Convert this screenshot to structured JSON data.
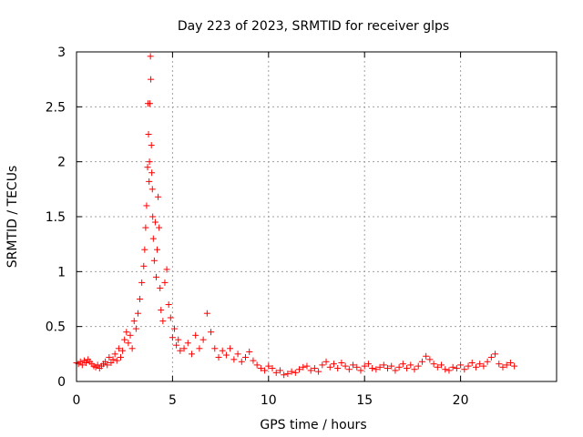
{
  "chart_data": {
    "type": "scatter",
    "title": "Day 223 of 2023, SRMTID for receiver glps",
    "xlabel": "GPS time / hours",
    "ylabel": "SRMTID / TECUs",
    "xlim": [
      0,
      25
    ],
    "ylim": [
      0,
      3
    ],
    "xticks": [
      0,
      5,
      10,
      15,
      20
    ],
    "xtick_labels": [
      "0",
      "5",
      "10",
      "15",
      "20"
    ],
    "yticks": [
      0,
      0.5,
      1,
      1.5,
      2,
      2.5,
      3
    ],
    "ytick_labels": [
      "0",
      "0.5",
      "1",
      "1.5",
      "2",
      "2.5",
      "3"
    ],
    "grid": true,
    "marker": "+",
    "marker_color": "#ff0000",
    "series": [
      {
        "name": "SRMTID",
        "points": [
          [
            0.0,
            0.17
          ],
          [
            0.1,
            0.16
          ],
          [
            0.2,
            0.18
          ],
          [
            0.3,
            0.15
          ],
          [
            0.4,
            0.19
          ],
          [
            0.5,
            0.17
          ],
          [
            0.6,
            0.2
          ],
          [
            0.7,
            0.18
          ],
          [
            0.8,
            0.16
          ],
          [
            0.9,
            0.14
          ],
          [
            1.0,
            0.13
          ],
          [
            1.1,
            0.15
          ],
          [
            1.2,
            0.12
          ],
          [
            1.3,
            0.14
          ],
          [
            1.4,
            0.16
          ],
          [
            1.5,
            0.18
          ],
          [
            1.6,
            0.15
          ],
          [
            1.7,
            0.22
          ],
          [
            1.8,
            0.17
          ],
          [
            1.9,
            0.2
          ],
          [
            2.0,
            0.25
          ],
          [
            2.1,
            0.19
          ],
          [
            2.2,
            0.3
          ],
          [
            2.3,
            0.22
          ],
          [
            2.4,
            0.28
          ],
          [
            2.5,
            0.38
          ],
          [
            2.6,
            0.45
          ],
          [
            2.7,
            0.35
          ],
          [
            2.8,
            0.42
          ],
          [
            2.9,
            0.3
          ],
          [
            3.0,
            0.55
          ],
          [
            3.1,
            0.48
          ],
          [
            3.2,
            0.62
          ],
          [
            3.3,
            0.75
          ],
          [
            3.4,
            0.9
          ],
          [
            3.5,
            1.05
          ],
          [
            3.55,
            1.2
          ],
          [
            3.6,
            1.4
          ],
          [
            3.65,
            1.6
          ],
          [
            3.7,
            1.95
          ],
          [
            3.72,
            2.53
          ],
          [
            3.75,
            2.25
          ],
          [
            3.78,
            1.82
          ],
          [
            3.8,
            2.0
          ],
          [
            3.82,
            2.53
          ],
          [
            3.85,
            2.96
          ],
          [
            3.87,
            2.75
          ],
          [
            3.9,
            2.15
          ],
          [
            3.92,
            1.9
          ],
          [
            3.95,
            1.75
          ],
          [
            3.97,
            1.5
          ],
          [
            4.0,
            1.3
          ],
          [
            4.05,
            1.1
          ],
          [
            4.1,
            1.45
          ],
          [
            4.15,
            0.95
          ],
          [
            4.2,
            1.2
          ],
          [
            4.25,
            1.68
          ],
          [
            4.3,
            1.4
          ],
          [
            4.35,
            0.85
          ],
          [
            4.4,
            0.65
          ],
          [
            4.5,
            0.55
          ],
          [
            4.6,
            0.9
          ],
          [
            4.7,
            1.02
          ],
          [
            4.8,
            0.7
          ],
          [
            4.9,
            0.58
          ],
          [
            5.0,
            0.4
          ],
          [
            5.1,
            0.48
          ],
          [
            5.2,
            0.33
          ],
          [
            5.3,
            0.38
          ],
          [
            5.4,
            0.28
          ],
          [
            5.6,
            0.3
          ],
          [
            5.8,
            0.35
          ],
          [
            6.0,
            0.25
          ],
          [
            6.2,
            0.42
          ],
          [
            6.4,
            0.3
          ],
          [
            6.6,
            0.38
          ],
          [
            6.8,
            0.62
          ],
          [
            7.0,
            0.45
          ],
          [
            7.2,
            0.3
          ],
          [
            7.4,
            0.22
          ],
          [
            7.6,
            0.28
          ],
          [
            7.8,
            0.24
          ],
          [
            8.0,
            0.3
          ],
          [
            8.2,
            0.2
          ],
          [
            8.4,
            0.25
          ],
          [
            8.6,
            0.18
          ],
          [
            8.8,
            0.22
          ],
          [
            9.0,
            0.27
          ],
          [
            9.2,
            0.19
          ],
          [
            9.4,
            0.15
          ],
          [
            9.6,
            0.12
          ],
          [
            9.8,
            0.1
          ],
          [
            10.0,
            0.14
          ],
          [
            10.2,
            0.12
          ],
          [
            10.4,
            0.08
          ],
          [
            10.6,
            0.1
          ],
          [
            10.8,
            0.06
          ],
          [
            11.0,
            0.07
          ],
          [
            11.2,
            0.09
          ],
          [
            11.4,
            0.08
          ],
          [
            11.6,
            0.11
          ],
          [
            11.8,
            0.13
          ],
          [
            12.0,
            0.14
          ],
          [
            12.2,
            0.1
          ],
          [
            12.4,
            0.12
          ],
          [
            12.6,
            0.09
          ],
          [
            12.8,
            0.15
          ],
          [
            13.0,
            0.18
          ],
          [
            13.2,
            0.13
          ],
          [
            13.4,
            0.16
          ],
          [
            13.6,
            0.12
          ],
          [
            13.8,
            0.17
          ],
          [
            14.0,
            0.14
          ],
          [
            14.2,
            0.11
          ],
          [
            14.4,
            0.15
          ],
          [
            14.6,
            0.13
          ],
          [
            14.8,
            0.1
          ],
          [
            15.0,
            0.14
          ],
          [
            15.2,
            0.16
          ],
          [
            15.4,
            0.12
          ],
          [
            15.6,
            0.11
          ],
          [
            15.8,
            0.13
          ],
          [
            16.0,
            0.15
          ],
          [
            16.2,
            0.12
          ],
          [
            16.4,
            0.14
          ],
          [
            16.6,
            0.1
          ],
          [
            16.8,
            0.13
          ],
          [
            17.0,
            0.16
          ],
          [
            17.2,
            0.12
          ],
          [
            17.4,
            0.15
          ],
          [
            17.6,
            0.11
          ],
          [
            17.8,
            0.14
          ],
          [
            18.0,
            0.18
          ],
          [
            18.2,
            0.23
          ],
          [
            18.4,
            0.2
          ],
          [
            18.6,
            0.16
          ],
          [
            18.8,
            0.13
          ],
          [
            19.0,
            0.15
          ],
          [
            19.2,
            0.11
          ],
          [
            19.4,
            0.1
          ],
          [
            19.6,
            0.13
          ],
          [
            19.8,
            0.12
          ],
          [
            20.0,
            0.15
          ],
          [
            20.2,
            0.11
          ],
          [
            20.4,
            0.14
          ],
          [
            20.6,
            0.17
          ],
          [
            20.8,
            0.13
          ],
          [
            21.0,
            0.16
          ],
          [
            21.2,
            0.14
          ],
          [
            21.4,
            0.18
          ],
          [
            21.6,
            0.22
          ],
          [
            21.8,
            0.25
          ],
          [
            22.0,
            0.16
          ],
          [
            22.2,
            0.13
          ],
          [
            22.4,
            0.15
          ],
          [
            22.6,
            0.17
          ],
          [
            22.8,
            0.14
          ]
        ]
      }
    ]
  }
}
